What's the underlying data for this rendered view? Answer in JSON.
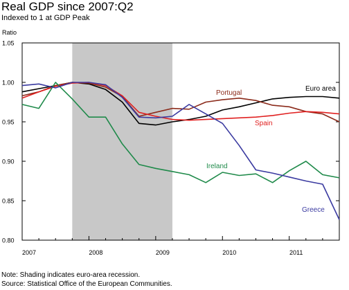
{
  "chart_data": {
    "type": "line",
    "title": "Real GDP since 2007:Q2",
    "subtitle": "Indexed to 1 at GDP Peak",
    "ylabel": "Ratio",
    "xlabel": "",
    "xlim": [
      2007.0,
      2011.75
    ],
    "ylim": [
      0.8,
      1.05
    ],
    "yticks": [
      0.8,
      0.85,
      0.9,
      0.95,
      1.0,
      1.05
    ],
    "ytick_labels": [
      "0.80",
      "0.85",
      "0.90",
      "0.95",
      "1.00",
      "1.05"
    ],
    "xticks": [
      2007,
      2008,
      2009,
      2010,
      2011
    ],
    "xtick_labels": [
      "2007",
      "2008",
      "2009",
      "2010",
      "2011"
    ],
    "grid": false,
    "legend": "inline labels",
    "shading": {
      "label": "Shading indicates euro-area recession.",
      "x0": 2007.75,
      "x1": 2009.25,
      "color": "#c8c8c8"
    },
    "series": [
      {
        "name": "Euro area",
        "color": "#000000",
        "x": [
          2007.0,
          2007.25,
          2007.5,
          2007.75,
          2008.0,
          2008.25,
          2008.5,
          2008.75,
          2009.0,
          2009.25,
          2009.5,
          2009.75,
          2010.0,
          2010.25,
          2010.5,
          2010.75,
          2011.0,
          2011.25,
          2011.5,
          2011.75
        ],
        "values": [
          0.988,
          0.992,
          0.996,
          1.0,
          0.998,
          0.991,
          0.975,
          0.948,
          0.946,
          0.95,
          0.953,
          0.957,
          0.965,
          0.969,
          0.974,
          0.979,
          0.981,
          0.982,
          0.982,
          0.98
        ]
      },
      {
        "name": "Portugal",
        "color": "#8b2a1a",
        "x": [
          2007.0,
          2007.25,
          2007.5,
          2007.75,
          2008.0,
          2008.25,
          2008.5,
          2008.75,
          2009.0,
          2009.25,
          2009.5,
          2009.75,
          2010.0,
          2010.25,
          2010.5,
          2010.75,
          2011.0,
          2011.25,
          2011.5,
          2011.75
        ],
        "values": [
          0.983,
          0.988,
          0.996,
          1.0,
          0.999,
          0.994,
          0.982,
          0.957,
          0.962,
          0.967,
          0.966,
          0.975,
          0.978,
          0.98,
          0.977,
          0.971,
          0.969,
          0.963,
          0.96,
          0.95
        ]
      },
      {
        "name": "Spain",
        "color": "#e02020",
        "x": [
          2007.0,
          2007.25,
          2007.5,
          2007.75,
          2008.0,
          2008.25,
          2008.5,
          2008.75,
          2009.0,
          2009.25,
          2009.5,
          2009.75,
          2010.0,
          2010.25,
          2010.5,
          2010.75,
          2011.0,
          2011.25,
          2011.5,
          2011.75
        ],
        "values": [
          0.98,
          0.988,
          0.995,
          0.999,
          1.0,
          0.996,
          0.983,
          0.962,
          0.957,
          0.953,
          0.952,
          0.953,
          0.954,
          0.955,
          0.956,
          0.958,
          0.961,
          0.963,
          0.962,
          0.96
        ]
      },
      {
        "name": "Ireland",
        "color": "#1f8a4a",
        "x": [
          2007.0,
          2007.25,
          2007.5,
          2007.75,
          2008.0,
          2008.25,
          2008.5,
          2008.75,
          2009.0,
          2009.25,
          2009.5,
          2009.75,
          2010.0,
          2010.25,
          2010.5,
          2010.75,
          2011.0,
          2011.25,
          2011.5,
          2011.75
        ],
        "values": [
          0.972,
          0.967,
          1.0,
          0.979,
          0.956,
          0.956,
          0.922,
          0.896,
          0.891,
          0.887,
          0.883,
          0.873,
          0.886,
          0.882,
          0.884,
          0.873,
          0.888,
          0.9,
          0.883,
          0.879
        ]
      },
      {
        "name": "Greece",
        "color": "#3a3aa0",
        "x": [
          2007.0,
          2007.25,
          2007.5,
          2007.75,
          2008.0,
          2008.25,
          2008.5,
          2008.75,
          2009.0,
          2009.25,
          2009.5,
          2009.75,
          2010.0,
          2010.25,
          2010.5,
          2010.75,
          2011.0,
          2011.25,
          2011.5,
          2011.75
        ],
        "values": [
          0.996,
          0.998,
          0.993,
          1.0,
          1.0,
          0.997,
          0.981,
          0.956,
          0.955,
          0.957,
          0.972,
          0.96,
          0.948,
          0.92,
          0.889,
          0.885,
          0.88,
          0.875,
          0.871,
          0.826
        ]
      }
    ]
  },
  "notes": {
    "shading": "Note: Shading indicates euro-area recession.",
    "source": "Source: Statistical Office of the European Communities."
  }
}
